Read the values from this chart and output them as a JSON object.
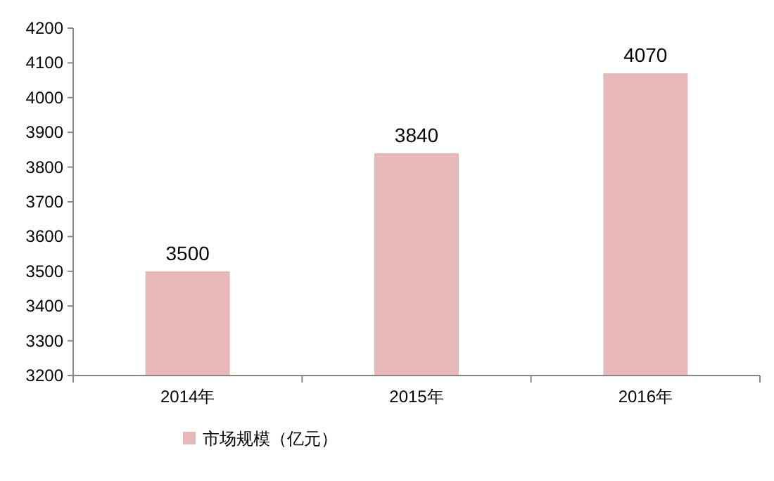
{
  "chart_data": {
    "type": "bar",
    "categories": [
      "2014年",
      "2015年",
      "2016年"
    ],
    "series": [
      {
        "name": "市场规模（亿元）",
        "color": "#e6b9b8",
        "values": [
          3500,
          3840,
          4070
        ]
      }
    ],
    "ylim": [
      3200,
      4200
    ],
    "yticks": [
      3200,
      3300,
      3400,
      3500,
      3600,
      3700,
      3800,
      3900,
      4000,
      4100,
      4200
    ],
    "data_labels": true,
    "legend": "bottom",
    "grid": false
  }
}
